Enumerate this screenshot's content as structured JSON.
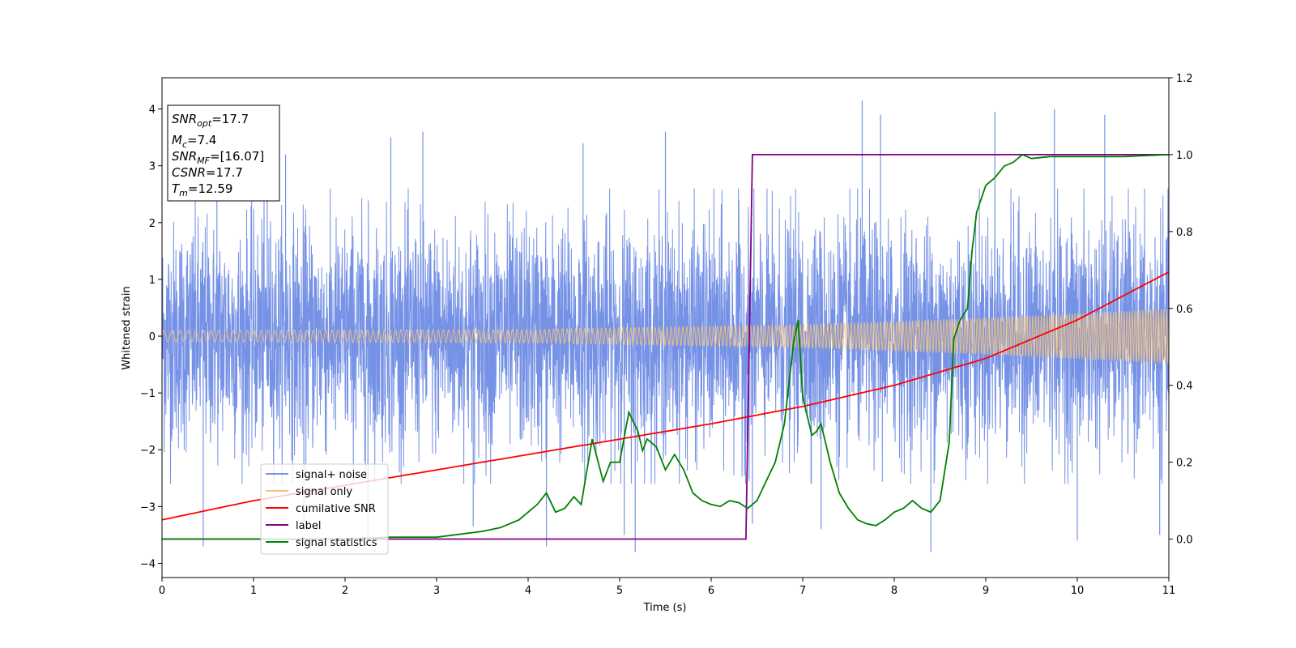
{
  "chart_data": {
    "type": "line",
    "xlabel": "Time (s)",
    "ylabel": "Whitened strain",
    "xlim": [
      0,
      11
    ],
    "ylim": [
      -4.25,
      4.55
    ],
    "ylim_right": [
      -0.1,
      1.2
    ],
    "x_ticks": [
      0,
      1,
      2,
      3,
      4,
      5,
      6,
      7,
      8,
      9,
      10,
      11
    ],
    "y_ticks": [
      -4,
      -3,
      -2,
      -1,
      0,
      1,
      2,
      3,
      4
    ],
    "y_tick_labels": [
      "−4",
      "−3",
      "−2",
      "−1",
      "0",
      "1",
      "2",
      "3",
      "4"
    ],
    "y_right_ticks": [
      0.0,
      0.2,
      0.4,
      0.6,
      0.8,
      1.0,
      1.2
    ],
    "y_right_tick_labels": [
      "0.0",
      "0.2",
      "0.4",
      "0.6",
      "0.8",
      "1.0",
      "1.2"
    ],
    "grid": false,
    "legend_position": "lower-left",
    "annotation": [
      {
        "base": "SNR",
        "sub": "opt",
        "value": "=17.7"
      },
      {
        "base": "M",
        "sub": "c",
        "value": "=7.4"
      },
      {
        "base": "SNR",
        "sub": "MF",
        "value": "=[16.07]"
      },
      {
        "base": "CSNR",
        "sub": "",
        "value": "=17.7"
      },
      {
        "base": "T",
        "sub": "m",
        "value": "=12.59"
      }
    ],
    "series": [
      {
        "name": "signal+ noise",
        "axis": "left",
        "color": "#7692e6",
        "description": "dense noisy strain, approx. ±1.6 band with spikes up to 4.2 and down to -3.8",
        "band": 1.6,
        "spikes": [
          [
            0.45,
            -3.7
          ],
          [
            0.6,
            3.4
          ],
          [
            1.15,
            3.3
          ],
          [
            1.35,
            3.2
          ],
          [
            1.55,
            -3.3
          ],
          [
            2.25,
            -3.6
          ],
          [
            2.5,
            3.5
          ],
          [
            2.85,
            3.6
          ],
          [
            3.4,
            -3.35
          ],
          [
            4.2,
            -3.7
          ],
          [
            4.6,
            3.4
          ],
          [
            5.05,
            -3.5
          ],
          [
            5.17,
            -3.8
          ],
          [
            5.5,
            3.6
          ],
          [
            6.45,
            -3.3
          ],
          [
            7.2,
            -3.4
          ],
          [
            7.65,
            4.15
          ],
          [
            7.85,
            3.9
          ],
          [
            8.4,
            -3.8
          ],
          [
            9.1,
            3.95
          ],
          [
            9.75,
            4.0
          ],
          [
            10.0,
            -3.6
          ],
          [
            10.3,
            3.9
          ],
          [
            10.9,
            -3.5
          ]
        ]
      },
      {
        "name": "signal only",
        "axis": "left",
        "color": "#f5c27a",
        "description": "chirp oscillation with amplitude growing from ~0.1 to ~0.5",
        "amplitude": [
          [
            0,
            0.1
          ],
          [
            4,
            0.12
          ],
          [
            7,
            0.2
          ],
          [
            9,
            0.32
          ],
          [
            11,
            0.48
          ]
        ]
      },
      {
        "name": "cumilative SNR",
        "axis": "right",
        "color": "#ff0000",
        "x": [
          0,
          1,
          2,
          3,
          4,
          5,
          6,
          7,
          8,
          9,
          10,
          11
        ],
        "y": [
          0.05,
          0.1,
          0.14,
          0.18,
          0.22,
          0.26,
          0.3,
          0.345,
          0.4,
          0.47,
          0.57,
          0.695
        ]
      },
      {
        "name": "label",
        "axis": "right",
        "color": "#800080",
        "x": [
          0,
          6.38,
          6.45,
          11
        ],
        "y": [
          0,
          0,
          1,
          1
        ]
      },
      {
        "name": "signal statistics",
        "axis": "right",
        "color": "#008000",
        "x": [
          0,
          1,
          2,
          2.5,
          3,
          3.5,
          3.7,
          3.9,
          4.1,
          4.2,
          4.3,
          4.4,
          4.5,
          4.58,
          4.7,
          4.82,
          4.9,
          5.0,
          5.1,
          5.2,
          5.25,
          5.3,
          5.4,
          5.5,
          5.6,
          5.7,
          5.8,
          5.9,
          6.0,
          6.1,
          6.2,
          6.3,
          6.4,
          6.5,
          6.6,
          6.7,
          6.8,
          6.9,
          6.95,
          7.0,
          7.1,
          7.15,
          7.2,
          7.3,
          7.4,
          7.5,
          7.6,
          7.7,
          7.8,
          7.9,
          8.0,
          8.1,
          8.2,
          8.3,
          8.4,
          8.5,
          8.6,
          8.65,
          8.72,
          8.8,
          8.85,
          8.9,
          9.0,
          9.1,
          9.2,
          9.3,
          9.4,
          9.5,
          9.7,
          10.0,
          10.5,
          11.0
        ],
        "y": [
          0.0,
          0.0,
          0.0,
          0.005,
          0.005,
          0.02,
          0.03,
          0.05,
          0.09,
          0.12,
          0.07,
          0.08,
          0.11,
          0.09,
          0.26,
          0.15,
          0.2,
          0.2,
          0.33,
          0.28,
          0.23,
          0.26,
          0.24,
          0.18,
          0.22,
          0.18,
          0.12,
          0.1,
          0.09,
          0.085,
          0.1,
          0.095,
          0.08,
          0.1,
          0.15,
          0.2,
          0.3,
          0.51,
          0.57,
          0.37,
          0.27,
          0.28,
          0.3,
          0.2,
          0.12,
          0.08,
          0.05,
          0.04,
          0.035,
          0.05,
          0.07,
          0.08,
          0.1,
          0.08,
          0.07,
          0.1,
          0.25,
          0.52,
          0.57,
          0.6,
          0.75,
          0.85,
          0.92,
          0.94,
          0.97,
          0.98,
          1.0,
          0.99,
          0.995,
          0.995,
          0.995,
          1.0
        ]
      }
    ]
  }
}
